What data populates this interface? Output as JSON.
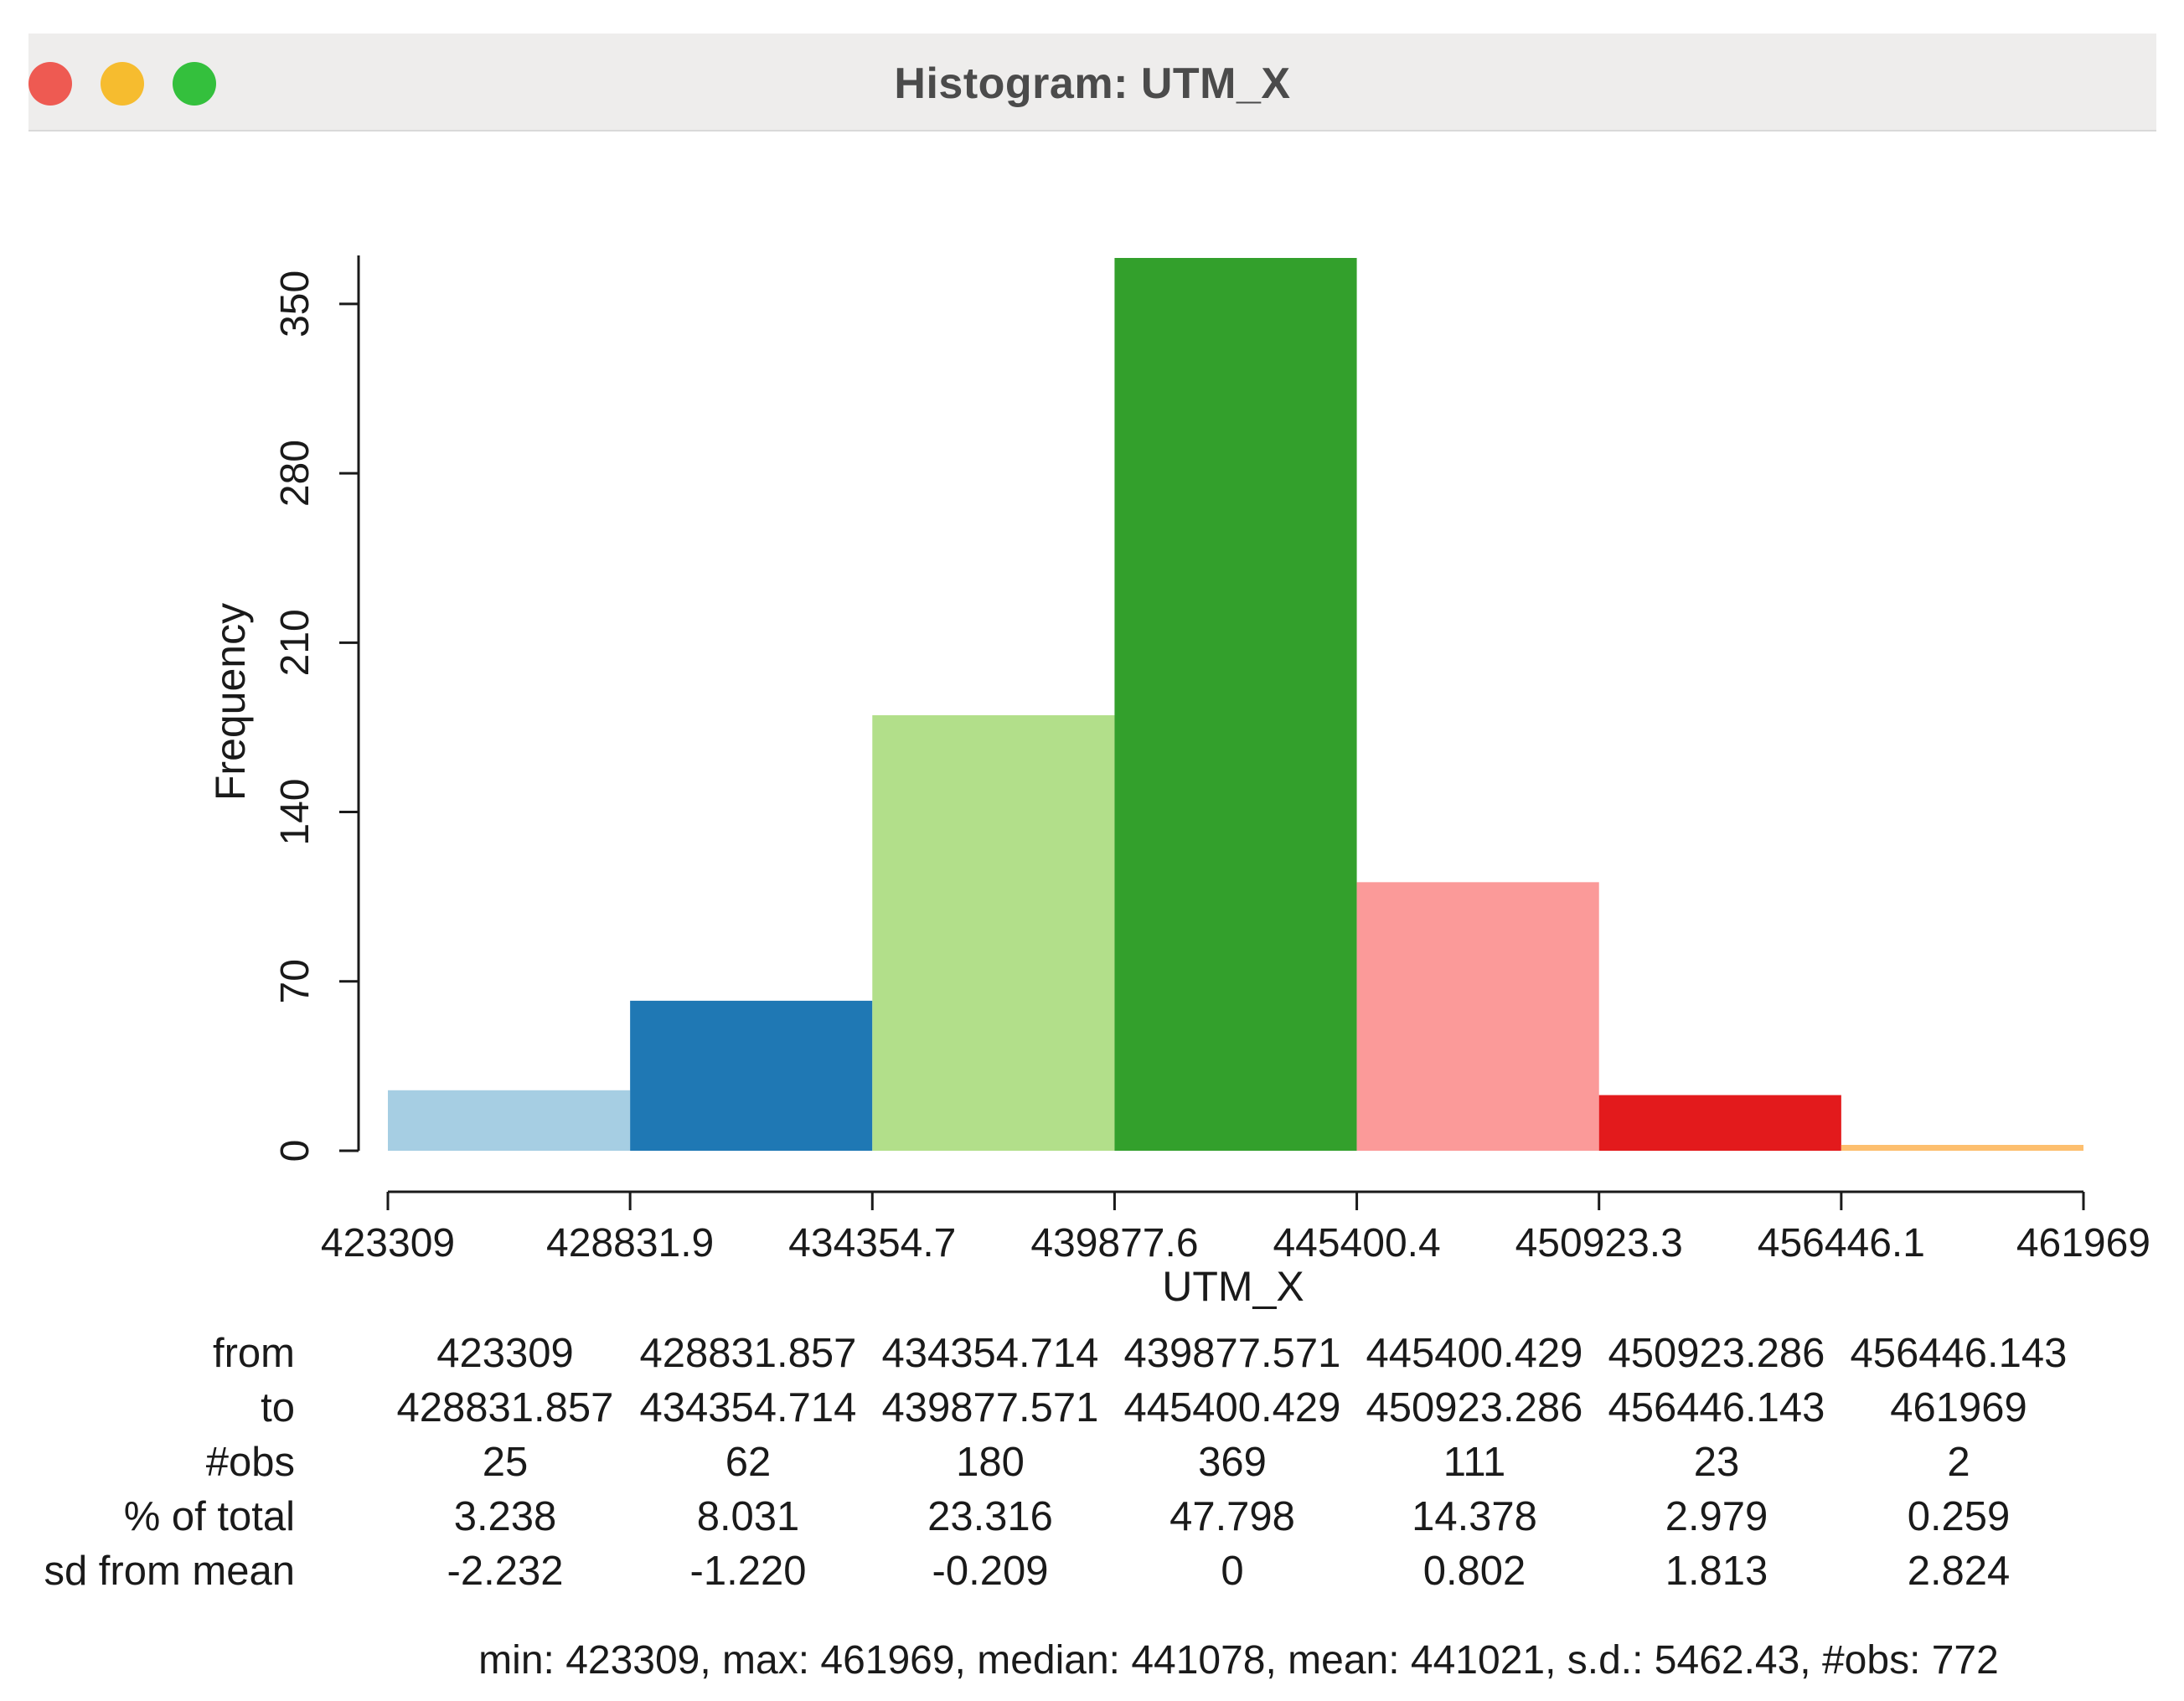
{
  "window": {
    "title": "Histogram: UTM_X",
    "controls": [
      "close",
      "minimize",
      "zoom"
    ]
  },
  "chart_data": {
    "type": "bar",
    "title": "Histogram: UTM_X",
    "xlabel": "UTM_X",
    "ylabel": "Frequency",
    "ylim": [
      0,
      369
    ],
    "y_ticks": [
      0,
      70,
      140,
      210,
      280,
      350
    ],
    "x_ticks": [
      "423309",
      "428831.9",
      "434354.7",
      "439877.6",
      "445400.4",
      "450923.3",
      "456446.1",
      "461969"
    ],
    "bins": [
      {
        "from": 423309,
        "to": 428831.857,
        "count": 25,
        "color": "#a6cee3"
      },
      {
        "from": 428831.857,
        "to": 434354.714,
        "count": 62,
        "color": "#1f78b4"
      },
      {
        "from": 434354.714,
        "to": 439877.571,
        "count": 180,
        "color": "#b2df8a"
      },
      {
        "from": 439877.571,
        "to": 445400.429,
        "count": 369,
        "color": "#33a02c"
      },
      {
        "from": 445400.429,
        "to": 450923.286,
        "count": 111,
        "color": "#fb9a99"
      },
      {
        "from": 450923.286,
        "to": 456446.143,
        "count": 23,
        "color": "#e31a1c"
      },
      {
        "from": 456446.143,
        "to": 461969,
        "count": 2,
        "color": "#fdbf6f"
      }
    ],
    "grid": false,
    "legend": "none"
  },
  "table": {
    "row_labels": [
      "from",
      "to",
      "#obs",
      "% of total",
      "sd from mean"
    ],
    "rows": [
      [
        "423309",
        "428831.857",
        "434354.714",
        "439877.571",
        "445400.429",
        "450923.286",
        "456446.143"
      ],
      [
        "428831.857",
        "434354.714",
        "439877.571",
        "445400.429",
        "450923.286",
        "456446.143",
        "461969"
      ],
      [
        "25",
        "62",
        "180",
        "369",
        "111",
        "23",
        "2"
      ],
      [
        "3.238",
        "8.031",
        "23.316",
        "47.798",
        "14.378",
        "2.979",
        "0.259"
      ],
      [
        "-2.232",
        "-1.220",
        "-0.209",
        "0",
        "0.802",
        "1.813",
        "2.824"
      ]
    ]
  },
  "summary": "min: 423309, max: 461969, median: 441078, mean: 441021, s.d.: 5462.43, #obs: 772"
}
